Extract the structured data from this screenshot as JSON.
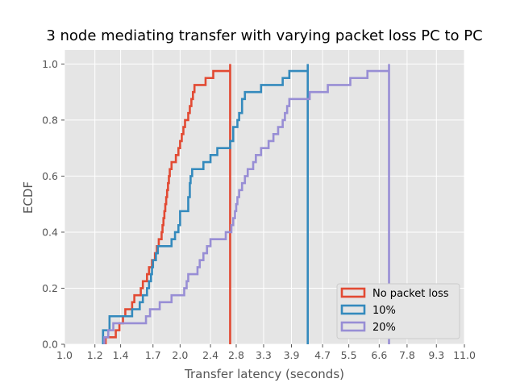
{
  "chart_data": {
    "type": "step-ecdf",
    "title": "3 node mediating transfer with varying packet loss PC to PC",
    "xlabel": "Transfer latency (seconds)",
    "ylabel": "ECDF",
    "xscale": "log",
    "xlim": [
      1.0,
      11.0
    ],
    "ylim": [
      0.0,
      1.05
    ],
    "x_ticks": [
      "1.0",
      "1.2",
      "1.4",
      "1.7",
      "2.0",
      "2.4",
      "2.8",
      "3.3",
      "3.9",
      "4.7",
      "5.5",
      "6.6",
      "7.8",
      "9.3",
      "11.0"
    ],
    "y_ticks": [
      "0.0",
      "0.2",
      "0.4",
      "0.6",
      "0.8",
      "1.0"
    ],
    "grid": true,
    "legend_position": "lower-right",
    "series": [
      {
        "name": "No packet loss",
        "color": "#E24A33",
        "points": [
          [
            1.28,
            0.0
          ],
          [
            1.28,
            0.025
          ],
          [
            1.36,
            0.025
          ],
          [
            1.36,
            0.05
          ],
          [
            1.39,
            0.05
          ],
          [
            1.39,
            0.075
          ],
          [
            1.42,
            0.075
          ],
          [
            1.42,
            0.1
          ],
          [
            1.44,
            0.1
          ],
          [
            1.44,
            0.125
          ],
          [
            1.5,
            0.125
          ],
          [
            1.5,
            0.15
          ],
          [
            1.52,
            0.15
          ],
          [
            1.52,
            0.175
          ],
          [
            1.58,
            0.175
          ],
          [
            1.58,
            0.2
          ],
          [
            1.6,
            0.2
          ],
          [
            1.6,
            0.225
          ],
          [
            1.64,
            0.225
          ],
          [
            1.64,
            0.25
          ],
          [
            1.66,
            0.25
          ],
          [
            1.66,
            0.275
          ],
          [
            1.69,
            0.275
          ],
          [
            1.69,
            0.3
          ],
          [
            1.72,
            0.3
          ],
          [
            1.72,
            0.325
          ],
          [
            1.74,
            0.325
          ],
          [
            1.74,
            0.35
          ],
          [
            1.76,
            0.35
          ],
          [
            1.76,
            0.375
          ],
          [
            1.79,
            0.375
          ],
          [
            1.79,
            0.4
          ],
          [
            1.8,
            0.4
          ],
          [
            1.8,
            0.425
          ],
          [
            1.81,
            0.425
          ],
          [
            1.81,
            0.45
          ],
          [
            1.82,
            0.45
          ],
          [
            1.82,
            0.475
          ],
          [
            1.83,
            0.475
          ],
          [
            1.83,
            0.5
          ],
          [
            1.84,
            0.5
          ],
          [
            1.84,
            0.525
          ],
          [
            1.85,
            0.525
          ],
          [
            1.85,
            0.55
          ],
          [
            1.86,
            0.55
          ],
          [
            1.86,
            0.575
          ],
          [
            1.87,
            0.575
          ],
          [
            1.87,
            0.6
          ],
          [
            1.88,
            0.6
          ],
          [
            1.88,
            0.625
          ],
          [
            1.9,
            0.625
          ],
          [
            1.9,
            0.65
          ],
          [
            1.95,
            0.65
          ],
          [
            1.95,
            0.675
          ],
          [
            1.98,
            0.675
          ],
          [
            1.98,
            0.7
          ],
          [
            2.0,
            0.7
          ],
          [
            2.0,
            0.725
          ],
          [
            2.02,
            0.725
          ],
          [
            2.02,
            0.75
          ],
          [
            2.04,
            0.75
          ],
          [
            2.04,
            0.775
          ],
          [
            2.06,
            0.775
          ],
          [
            2.06,
            0.8
          ],
          [
            2.1,
            0.8
          ],
          [
            2.1,
            0.825
          ],
          [
            2.12,
            0.825
          ],
          [
            2.12,
            0.85
          ],
          [
            2.14,
            0.85
          ],
          [
            2.14,
            0.875
          ],
          [
            2.16,
            0.875
          ],
          [
            2.16,
            0.9
          ],
          [
            2.18,
            0.9
          ],
          [
            2.18,
            0.925
          ],
          [
            2.33,
            0.925
          ],
          [
            2.33,
            0.95
          ],
          [
            2.44,
            0.95
          ],
          [
            2.44,
            0.975
          ],
          [
            2.7,
            0.975
          ],
          [
            2.7,
            1.0
          ],
          [
            2.7,
            0.0
          ]
        ]
      },
      {
        "name": "10%",
        "color": "#348ABD",
        "points": [
          [
            1.26,
            0.0
          ],
          [
            1.26,
            0.05
          ],
          [
            1.31,
            0.05
          ],
          [
            1.31,
            0.1
          ],
          [
            1.5,
            0.1
          ],
          [
            1.5,
            0.125
          ],
          [
            1.57,
            0.125
          ],
          [
            1.57,
            0.15
          ],
          [
            1.6,
            0.15
          ],
          [
            1.6,
            0.175
          ],
          [
            1.64,
            0.175
          ],
          [
            1.64,
            0.2
          ],
          [
            1.66,
            0.2
          ],
          [
            1.66,
            0.225
          ],
          [
            1.68,
            0.225
          ],
          [
            1.68,
            0.25
          ],
          [
            1.69,
            0.25
          ],
          [
            1.69,
            0.275
          ],
          [
            1.7,
            0.275
          ],
          [
            1.7,
            0.3
          ],
          [
            1.73,
            0.3
          ],
          [
            1.73,
            0.325
          ],
          [
            1.75,
            0.325
          ],
          [
            1.75,
            0.35
          ],
          [
            1.9,
            0.35
          ],
          [
            1.9,
            0.375
          ],
          [
            1.94,
            0.375
          ],
          [
            1.94,
            0.4
          ],
          [
            1.98,
            0.4
          ],
          [
            1.98,
            0.425
          ],
          [
            2.0,
            0.425
          ],
          [
            2.0,
            0.475
          ],
          [
            2.1,
            0.475
          ],
          [
            2.1,
            0.525
          ],
          [
            2.12,
            0.525
          ],
          [
            2.12,
            0.575
          ],
          [
            2.13,
            0.575
          ],
          [
            2.13,
            0.6
          ],
          [
            2.15,
            0.6
          ],
          [
            2.15,
            0.625
          ],
          [
            2.3,
            0.625
          ],
          [
            2.3,
            0.65
          ],
          [
            2.4,
            0.65
          ],
          [
            2.4,
            0.675
          ],
          [
            2.5,
            0.675
          ],
          [
            2.5,
            0.7
          ],
          [
            2.7,
            0.7
          ],
          [
            2.7,
            0.725
          ],
          [
            2.75,
            0.725
          ],
          [
            2.75,
            0.775
          ],
          [
            2.82,
            0.775
          ],
          [
            2.82,
            0.8
          ],
          [
            2.85,
            0.8
          ],
          [
            2.85,
            0.825
          ],
          [
            2.9,
            0.825
          ],
          [
            2.9,
            0.875
          ],
          [
            2.95,
            0.875
          ],
          [
            2.95,
            0.9
          ],
          [
            3.25,
            0.9
          ],
          [
            3.25,
            0.925
          ],
          [
            3.7,
            0.925
          ],
          [
            3.7,
            0.95
          ],
          [
            3.85,
            0.95
          ],
          [
            3.85,
            0.975
          ],
          [
            4.3,
            0.975
          ],
          [
            4.3,
            1.0
          ],
          [
            4.3,
            0.0
          ]
        ]
      },
      {
        "name": "20%",
        "color": "#988ED5",
        "points": [
          [
            1.27,
            0.0
          ],
          [
            1.27,
            0.025
          ],
          [
            1.3,
            0.025
          ],
          [
            1.3,
            0.05
          ],
          [
            1.34,
            0.05
          ],
          [
            1.34,
            0.075
          ],
          [
            1.63,
            0.075
          ],
          [
            1.63,
            0.1
          ],
          [
            1.67,
            0.1
          ],
          [
            1.67,
            0.125
          ],
          [
            1.77,
            0.125
          ],
          [
            1.77,
            0.15
          ],
          [
            1.9,
            0.15
          ],
          [
            1.9,
            0.175
          ],
          [
            2.05,
            0.175
          ],
          [
            2.05,
            0.2
          ],
          [
            2.08,
            0.2
          ],
          [
            2.08,
            0.225
          ],
          [
            2.1,
            0.225
          ],
          [
            2.1,
            0.25
          ],
          [
            2.22,
            0.25
          ],
          [
            2.22,
            0.275
          ],
          [
            2.25,
            0.275
          ],
          [
            2.25,
            0.3
          ],
          [
            2.3,
            0.3
          ],
          [
            2.3,
            0.325
          ],
          [
            2.35,
            0.325
          ],
          [
            2.35,
            0.35
          ],
          [
            2.4,
            0.35
          ],
          [
            2.4,
            0.375
          ],
          [
            2.63,
            0.375
          ],
          [
            2.63,
            0.4
          ],
          [
            2.72,
            0.4
          ],
          [
            2.72,
            0.425
          ],
          [
            2.75,
            0.425
          ],
          [
            2.75,
            0.45
          ],
          [
            2.78,
            0.45
          ],
          [
            2.78,
            0.475
          ],
          [
            2.8,
            0.475
          ],
          [
            2.8,
            0.5
          ],
          [
            2.82,
            0.5
          ],
          [
            2.82,
            0.525
          ],
          [
            2.85,
            0.525
          ],
          [
            2.85,
            0.55
          ],
          [
            2.9,
            0.55
          ],
          [
            2.9,
            0.575
          ],
          [
            2.95,
            0.575
          ],
          [
            2.95,
            0.6
          ],
          [
            3.0,
            0.6
          ],
          [
            3.0,
            0.625
          ],
          [
            3.1,
            0.625
          ],
          [
            3.1,
            0.65
          ],
          [
            3.15,
            0.65
          ],
          [
            3.15,
            0.675
          ],
          [
            3.25,
            0.675
          ],
          [
            3.25,
            0.7
          ],
          [
            3.4,
            0.7
          ],
          [
            3.4,
            0.725
          ],
          [
            3.5,
            0.725
          ],
          [
            3.5,
            0.75
          ],
          [
            3.6,
            0.75
          ],
          [
            3.6,
            0.775
          ],
          [
            3.7,
            0.775
          ],
          [
            3.7,
            0.8
          ],
          [
            3.75,
            0.8
          ],
          [
            3.75,
            0.825
          ],
          [
            3.8,
            0.825
          ],
          [
            3.8,
            0.85
          ],
          [
            3.85,
            0.85
          ],
          [
            3.85,
            0.875
          ],
          [
            4.35,
            0.875
          ],
          [
            4.35,
            0.9
          ],
          [
            4.85,
            0.9
          ],
          [
            4.85,
            0.925
          ],
          [
            5.55,
            0.925
          ],
          [
            5.55,
            0.95
          ],
          [
            6.15,
            0.95
          ],
          [
            6.15,
            0.975
          ],
          [
            7.0,
            0.975
          ],
          [
            7.0,
            1.0
          ],
          [
            7.0,
            0.0
          ]
        ]
      }
    ]
  }
}
